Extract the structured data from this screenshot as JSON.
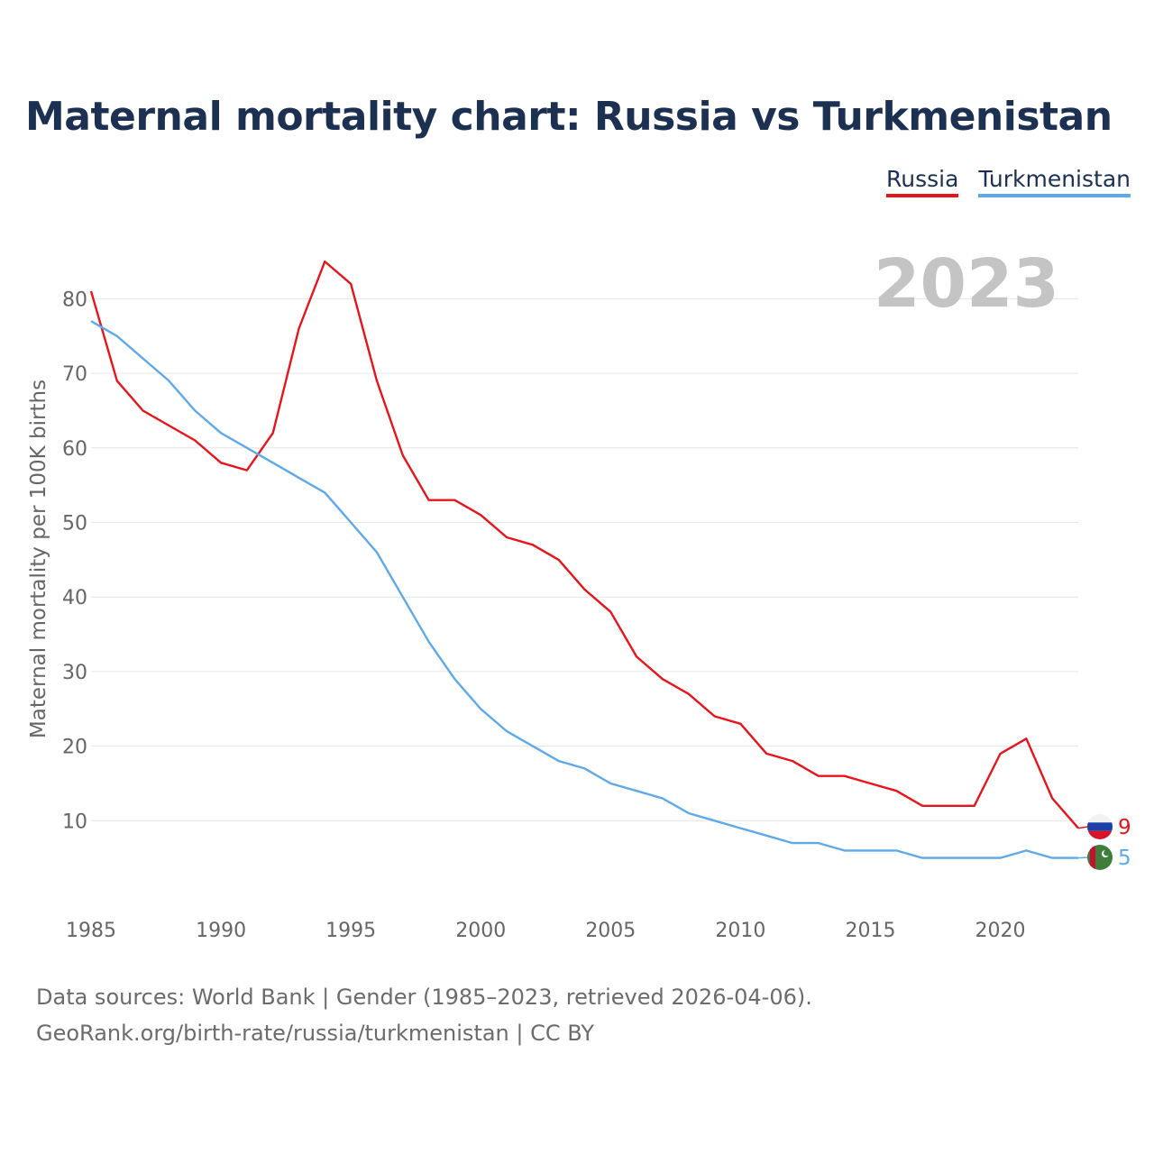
{
  "title": "Maternal mortality chart: Russia vs Turkmenistan",
  "legend": {
    "russia": "Russia",
    "turkmenistan": "Turkmenistan"
  },
  "year_label": "2023",
  "footer": {
    "line1": "Data sources: World Bank | Gender (1985–2023, retrieved 2026-04-06).",
    "line2": "GeoRank.org/birth-rate/russia/turkmenistan | CC BY"
  },
  "colors": {
    "russia": "#e8141b",
    "turkmenistan": "#5ea9e9",
    "title": "#1c3052",
    "grid": "#e6e6e6",
    "axis_text": "#666666",
    "year": "#c4c4c4"
  },
  "chart_data": {
    "type": "line",
    "title": "Maternal mortality chart: Russia vs Turkmenistan",
    "xlabel": "",
    "ylabel": "Maternal mortality per 100K births",
    "xlim": [
      1985,
      2023
    ],
    "ylim": [
      0,
      88
    ],
    "x_ticks": [
      1985,
      1990,
      1995,
      2000,
      2005,
      2010,
      2015,
      2020
    ],
    "y_ticks": [
      10,
      20,
      30,
      40,
      50,
      60,
      70,
      80
    ],
    "x": [
      1985,
      1986,
      1987,
      1988,
      1989,
      1990,
      1991,
      1992,
      1993,
      1994,
      1995,
      1996,
      1997,
      1998,
      1999,
      2000,
      2001,
      2002,
      2003,
      2004,
      2005,
      2006,
      2007,
      2008,
      2009,
      2010,
      2011,
      2012,
      2013,
      2014,
      2015,
      2016,
      2017,
      2018,
      2019,
      2020,
      2021,
      2022,
      2023
    ],
    "series": [
      {
        "name": "Russia",
        "key": "russia",
        "end_label": "9",
        "values": [
          81,
          69,
          65,
          63,
          61,
          58,
          57,
          62,
          76,
          85,
          82,
          69,
          59,
          53,
          53,
          51,
          48,
          47,
          45,
          41,
          38,
          32,
          29,
          27,
          24,
          23,
          19,
          18,
          16,
          16,
          15,
          14,
          12,
          12,
          12,
          19,
          21,
          13,
          9
        ]
      },
      {
        "name": "Turkmenistan",
        "key": "turkmenistan",
        "end_label": "5",
        "values": [
          77,
          75,
          72,
          69,
          65,
          62,
          60,
          58,
          56,
          54,
          50,
          46,
          40,
          34,
          29,
          25,
          22,
          20,
          18,
          17,
          15,
          14,
          13,
          11,
          10,
          9,
          8,
          7,
          7,
          6,
          6,
          6,
          5,
          5,
          5,
          5,
          6,
          5,
          5
        ]
      }
    ]
  }
}
